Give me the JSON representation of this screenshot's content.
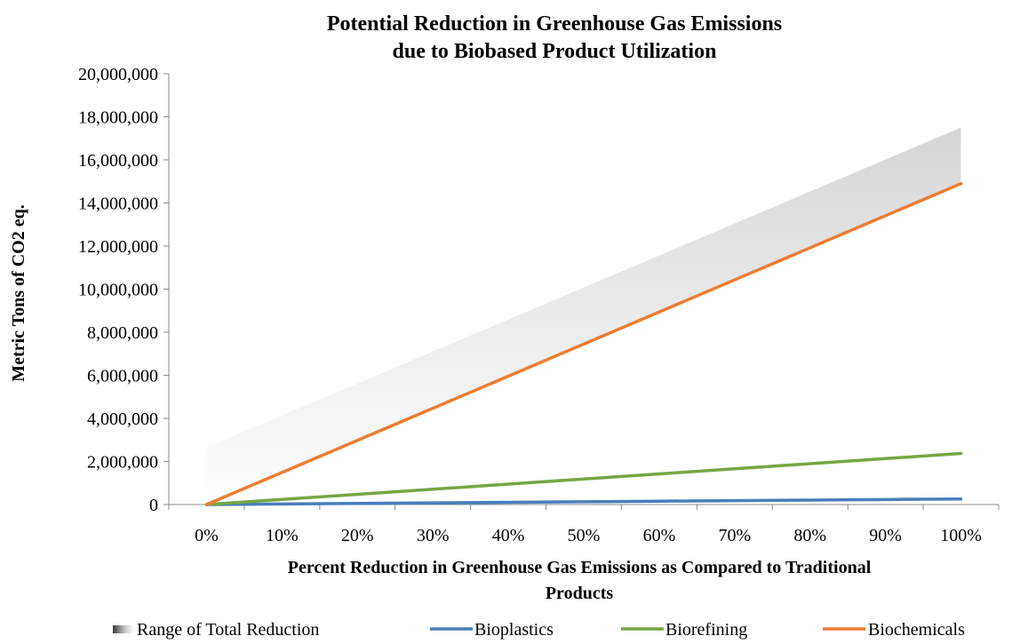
{
  "chart_data": {
    "type": "line",
    "title_lines": [
      "Potential Reduction in Greenhouse Gas Emissions",
      "due to Biobased Product Utilization"
    ],
    "xlabel_lines": [
      "Percent Reduction in Greenhouse Gas Emissions as Compared to Traditional",
      "Products"
    ],
    "ylabel": "Metric Tons of CO2 eq.",
    "x": [
      0,
      10,
      20,
      30,
      40,
      50,
      60,
      70,
      80,
      90,
      100
    ],
    "x_tick_labels": [
      "0%",
      "10%",
      "20%",
      "30%",
      "40%",
      "50%",
      "60%",
      "70%",
      "80%",
      "90%",
      "100%"
    ],
    "ylim": [
      0,
      20000000
    ],
    "y_ticks": [
      0,
      2000000,
      4000000,
      6000000,
      8000000,
      10000000,
      12000000,
      14000000,
      16000000,
      18000000,
      20000000
    ],
    "y_tick_labels": [
      "0",
      "2,000,000",
      "4,000,000",
      "6,000,000",
      "8,000,000",
      "10,000,000",
      "12,000,000",
      "14,000,000",
      "16,000,000",
      "18,000,000",
      "20,000,000"
    ],
    "grid": false,
    "legend_position": "bottom",
    "range": {
      "name": "Range of Total Reduction",
      "lower": [
        0,
        1490000,
        2980000,
        4470000,
        5960000,
        7450000,
        8940000,
        10430000,
        11920000,
        13410000,
        14900000
      ],
      "upper": [
        2650000,
        4135000,
        5620000,
        7105000,
        8590000,
        10075000,
        11560000,
        13045000,
        14530000,
        16015000,
        17500000
      ]
    },
    "series": [
      {
        "name": "Bioplastics",
        "color": "#4a7ebb",
        "values": [
          0,
          26000,
          52000,
          78000,
          104000,
          130000,
          156000,
          182000,
          208000,
          234000,
          260000
        ]
      },
      {
        "name": "Biorefining",
        "color": "#77a645",
        "values": [
          0,
          237000,
          474000,
          711000,
          948000,
          1185000,
          1422000,
          1659000,
          1896000,
          2133000,
          2370000
        ]
      },
      {
        "name": "Biochemicals",
        "color": "#ed7d31",
        "values": [
          0,
          1490000,
          2980000,
          4470000,
          5960000,
          7450000,
          8940000,
          10430000,
          11920000,
          13410000,
          14900000
        ]
      }
    ]
  }
}
